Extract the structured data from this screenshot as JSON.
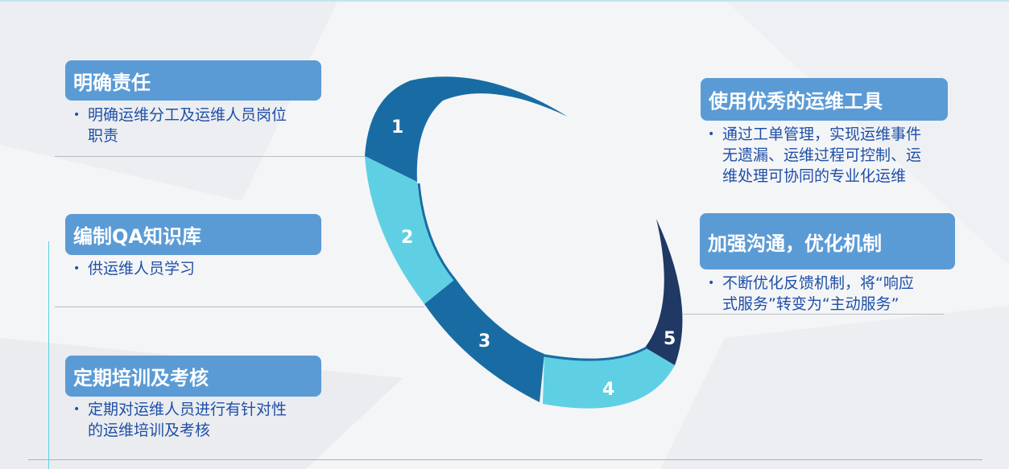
{
  "colors": {
    "box": "#5b9bd5",
    "text": "#1f4fa8",
    "ring_dark": "#186ca3",
    "ring_light": "#5fd0e3",
    "ring_navy": "#1f3864"
  },
  "ring": {
    "labels": [
      "1",
      "2",
      "3",
      "4",
      "5"
    ]
  },
  "left": [
    {
      "title": "明确责任",
      "lines": [
        "明确运维分工及运维人员岗位",
        "职责"
      ]
    },
    {
      "title": "编制QA知识库",
      "lines": [
        "供运维人员学习"
      ]
    },
    {
      "title": "定期培训及考核",
      "lines": [
        "定期对运维人员进行有针对性",
        "的运维培训及考核"
      ]
    }
  ],
  "right": [
    {
      "title": "使用优秀的运维工具",
      "lines": [
        "通过工单管理，实现运维事件",
        "无遗漏、运维过程可控制、运",
        "维处理可协同的专业化运维"
      ]
    },
    {
      "title": "加强沟通，优化机制",
      "lines": [
        "不断优化反馈机制，将“响应",
        "式服务”转变为“主动服务”"
      ]
    }
  ]
}
